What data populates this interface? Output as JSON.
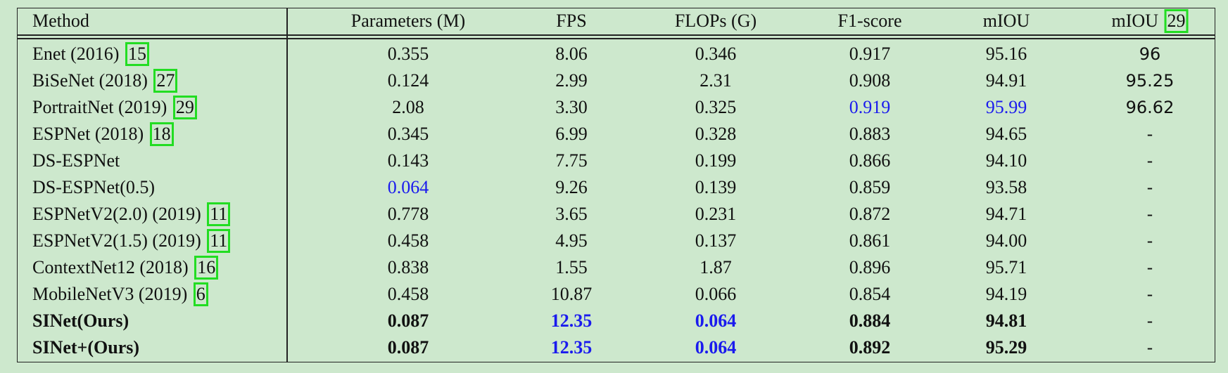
{
  "table": {
    "header": [
      {
        "text": "Method"
      },
      "Parameters (M)",
      "FPS",
      "FLOPs (G)",
      "F1-score",
      "mIOU",
      {
        "text": "mIOU",
        "cite": "29"
      }
    ],
    "rows": [
      [
        {
          "text": "Enet (2016)",
          "cite": "15"
        },
        "0.355",
        "8.06",
        "0.346",
        "0.917",
        "95.16",
        "96"
      ],
      [
        {
          "text": "BiSeNet (2018)",
          "cite": "27"
        },
        "0.124",
        "2.99",
        "2.31",
        "0.908",
        "94.91",
        "95.25"
      ],
      [
        {
          "text": "PortraitNet (2019)",
          "cite": "29"
        },
        "2.08",
        "3.30",
        "0.325",
        "0.919",
        "95.99",
        "96.62"
      ],
      [
        {
          "text": "ESPNet (2018)",
          "cite": "18"
        },
        "0.345",
        "6.99",
        "0.328",
        "0.883",
        "94.65",
        "-"
      ],
      [
        {
          "text": "DS-ESPNet"
        },
        "0.143",
        "7.75",
        "0.199",
        "0.866",
        "94.10",
        "-"
      ],
      [
        {
          "text": "DS-ESPNet(0.5)"
        },
        "0.064",
        "9.26",
        "0.139",
        "0.859",
        "93.58",
        "-"
      ],
      [
        {
          "text": "ESPNetV2(2.0) (2019)",
          "cite": "11"
        },
        "0.778",
        "3.65",
        "0.231",
        "0.872",
        "94.71",
        "-"
      ],
      [
        {
          "text": "ESPNetV2(1.5) (2019)",
          "cite": "11"
        },
        "0.458",
        "4.95",
        "0.137",
        "0.861",
        "94.00",
        "-"
      ],
      [
        {
          "text": "ContextNet12 (2018)",
          "cite": "16"
        },
        "0.838",
        "1.55",
        "1.87",
        "0.896",
        "95.71",
        "-"
      ],
      [
        {
          "text": "MobileNetV3 (2019)",
          "cite": "6"
        },
        "0.458",
        "10.87",
        "0.066",
        "0.854",
        "94.19",
        "-"
      ],
      [
        {
          "text": "SINet(Ours)"
        },
        "0.087",
        "12.35",
        "0.064",
        "0.884",
        "94.81",
        "-"
      ],
      [
        {
          "text": "SINet+(Ours)"
        },
        "0.087",
        "12.35",
        "0.064",
        "0.892",
        "95.29",
        "-"
      ]
    ]
  }
}
